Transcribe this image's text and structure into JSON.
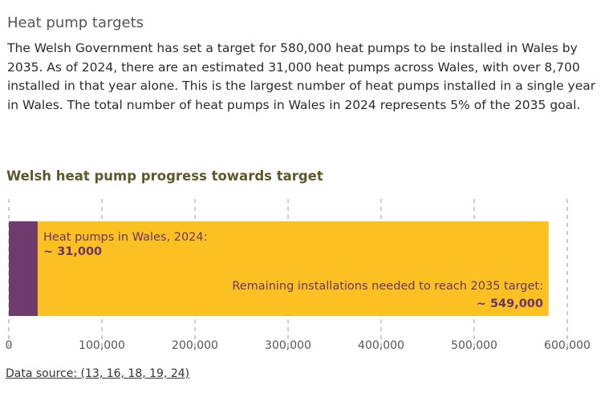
{
  "section": {
    "heading": "Heat pump targets",
    "paragraph": "The Welsh Government has set a target for 580,000 heat pumps to be installed in Wales by 2035. As of 2024, there are an estimated 31,000 heat pumps across Wales, with over 8,700 installed in that year alone. This is the largest number of heat pumps installed in a single year in Wales. The total number of heat pumps in Wales in 2024 represents 5% of the 2035 goal."
  },
  "chart_data": {
    "type": "bar",
    "orientation": "horizontal",
    "stacked": true,
    "title": "Welsh heat pump progress towards target",
    "xlim": [
      0,
      600000
    ],
    "ticks": [
      0,
      100000,
      200000,
      300000,
      400000,
      500000,
      600000
    ],
    "tick_labels": [
      "0",
      "100,000",
      "200,000",
      "300,000",
      "400,000",
      "500,000",
      "600,000"
    ],
    "grid": "dashed vertical",
    "series": [
      {
        "name": "Heat pumps in Wales, 2024:",
        "value": 31000,
        "value_label": "~ 31,000",
        "color": "#6f3a6d"
      },
      {
        "name": "Remaining installations needed to reach 2035 target:",
        "value": 549000,
        "value_label": "~ 549,000",
        "color": "#fbc123"
      }
    ],
    "label_color": "#6b3568"
  },
  "source": {
    "label": "Data source: (13, 16, 18, 19, 24)"
  }
}
